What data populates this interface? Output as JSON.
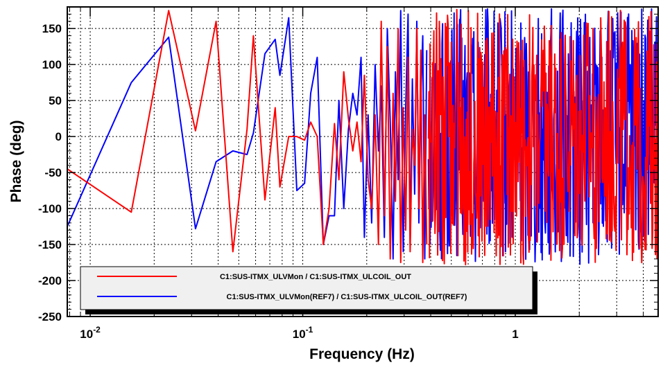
{
  "chart_data": {
    "type": "line",
    "xlabel": "Frequency (Hz)",
    "ylabel": "Phase (deg)",
    "xscale": "log",
    "xlim": [
      0.0078,
      4.7
    ],
    "ylim": [
      -250,
      180
    ],
    "grid": true,
    "legend_position": "bottom-left",
    "x_tick_labels": [
      {
        "value": 0.01,
        "base": "10",
        "exp": "-2"
      },
      {
        "value": 0.1,
        "base": "10",
        "exp": "-1"
      },
      {
        "value": 1,
        "base": "1",
        "exp": ""
      }
    ],
    "y_ticks": [
      150,
      100,
      50,
      0,
      -50,
      -100,
      -150,
      -200,
      -250
    ],
    "series": [
      {
        "name": "C1:SUS-ITMX_ULVMon / C1:SUS-ITMX_ULCOIL_OUT",
        "color": "#ff0000",
        "x": [
          0.0078,
          0.0156,
          0.0234,
          0.0313,
          0.0391,
          0.0469,
          0.0547,
          0.0586,
          0.0664,
          0.0742,
          0.0781,
          0.0859,
          0.0938,
          0.102,
          0.109,
          0.117,
          0.125,
          0.133,
          0.141,
          0.148,
          0.156,
          0.164,
          0.172,
          0.18,
          0.188,
          0.195,
          0.203,
          0.211,
          0.219,
          0.227,
          0.234,
          0.242,
          0.25,
          0.258,
          0.266,
          0.273,
          0.281,
          0.289,
          0.297,
          0.305,
          0.313,
          0.32,
          0.328,
          0.336,
          0.344,
          0.352,
          0.359,
          0.367,
          0.375,
          0.383
        ],
        "values": [
          -45,
          -105,
          175,
          8,
          160,
          -160,
          10,
          140,
          -88,
          40,
          -70,
          0,
          0,
          -5,
          20,
          0,
          -150,
          -100,
          18,
          -60,
          90,
          25,
          -20,
          20,
          -35,
          85,
          -60,
          -100,
          30,
          -150,
          160,
          -110,
          125,
          -170,
          60,
          -90,
          150,
          -175,
          40,
          -130,
          110,
          -160,
          10,
          -40,
          150,
          -100,
          120,
          -175,
          30,
          -150
        ]
      },
      {
        "name": "C1:SUS-ITMX_ULVMon(REF7) / C1:SUS-ITMX_ULCOIL_OUT(REF7)",
        "color": "#0000ff",
        "x": [
          0.0078,
          0.0156,
          0.0234,
          0.0313,
          0.0391,
          0.0469,
          0.0547,
          0.0586,
          0.0664,
          0.0742,
          0.0781,
          0.0859,
          0.0938,
          0.102,
          0.109,
          0.117,
          0.125,
          0.133,
          0.141,
          0.148,
          0.156,
          0.164,
          0.172,
          0.18,
          0.188,
          0.195,
          0.203,
          0.211,
          0.219,
          0.227,
          0.234,
          0.242,
          0.25,
          0.258,
          0.266,
          0.273,
          0.281,
          0.289,
          0.297,
          0.305,
          0.313,
          0.32,
          0.328,
          0.336,
          0.344,
          0.352,
          0.359,
          0.367,
          0.375,
          0.383
        ],
        "values": [
          -125,
          75,
          138,
          -128,
          -35,
          -20,
          -25,
          5,
          115,
          135,
          85,
          165,
          -75,
          -65,
          60,
          110,
          -150,
          -110,
          -110,
          50,
          -100,
          10,
          60,
          30,
          110,
          -140,
          30,
          -120,
          100,
          -20,
          70,
          -140,
          150,
          20,
          -170,
          90,
          -60,
          175,
          -160,
          40,
          170,
          -150,
          80,
          -80,
          160,
          -120,
          50,
          140,
          -170,
          120
        ]
      }
    ]
  }
}
